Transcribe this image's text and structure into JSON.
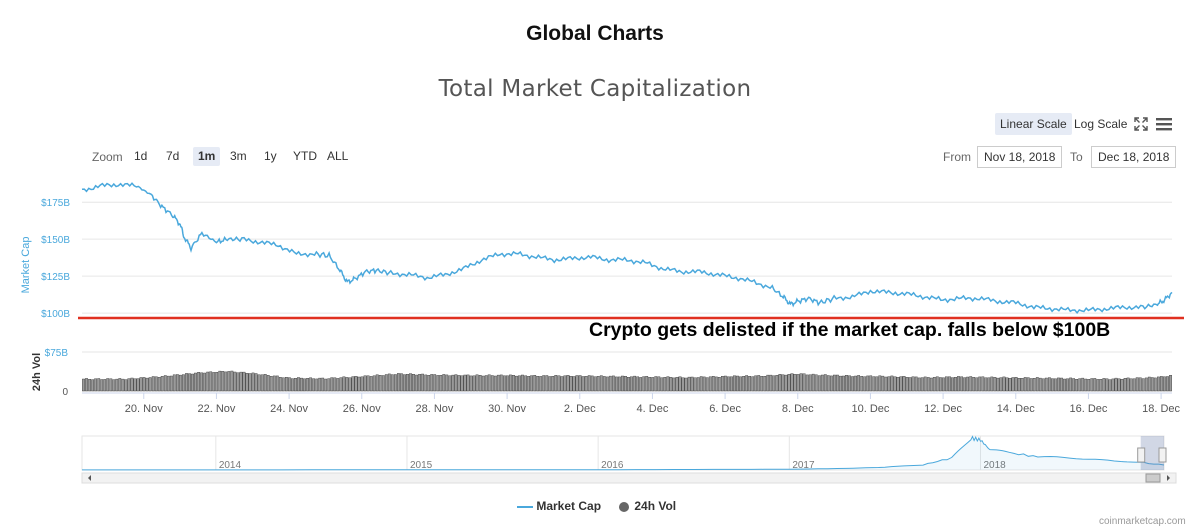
{
  "page_title": "Global Charts",
  "credit": "coinmarketcap.com",
  "toolbar": {
    "zoom_label": "Zoom",
    "zoom_buttons": [
      "1d",
      "7d",
      "1m",
      "3m",
      "1y",
      "YTD",
      "ALL"
    ],
    "active_zoom": "1m",
    "from_label": "From",
    "from_value": "Nov 18, 2018",
    "to_label": "To",
    "to_value": "Dec 18, 2018",
    "linear_scale": "Linear Scale",
    "log_scale": "Log Scale",
    "fullscreen_icon": "fullscreen-icon",
    "menu_icon": "menu-icon"
  },
  "annotation": {
    "text": "Crypto gets delisted if the market cap. falls below $100B",
    "threshold": 100,
    "line_color": "#e03020"
  },
  "legend": {
    "market_cap": "Market Cap",
    "volume": "24h Vol"
  },
  "colors": {
    "market_cap": "#4aa8dc",
    "volume_fill": "#9a9a9a",
    "volume_stroke": "#333333",
    "accent": "#e6ebf5"
  },
  "chart_data": {
    "type": "line",
    "title": "Total Market Capitalization",
    "ylabel": "Market Cap",
    "ylim": [
      92,
      190
    ],
    "yticks": [
      100,
      125,
      150,
      175
    ],
    "ytick_labels": [
      "$100B",
      "$125B",
      "$150B",
      "$175B"
    ],
    "xlim": [
      18.3,
      48.3
    ],
    "xticks": [
      20,
      22,
      24,
      26,
      28,
      30,
      32,
      34,
      36,
      38,
      40,
      42,
      44,
      46,
      48
    ],
    "xtick_labels": [
      "20. Nov",
      "22. Nov",
      "24. Nov",
      "26. Nov",
      "28. Nov",
      "30. Nov",
      "2. Dec",
      "4. Dec",
      "6. Dec",
      "8. Dec",
      "10. Dec",
      "12. Dec",
      "14. Dec",
      "16. Dec",
      "18. Dec"
    ],
    "series": [
      {
        "name": "Market Cap",
        "unit": "$B",
        "x": [
          18.3,
          18.8,
          19.3,
          19.8,
          20.2,
          20.5,
          20.8,
          21.0,
          21.1,
          21.3,
          21.6,
          22.0,
          22.3,
          22.7,
          23.2,
          23.7,
          24.2,
          24.7,
          25.1,
          25.4,
          25.6,
          25.8,
          26.1,
          26.4,
          26.8,
          27.3,
          27.8,
          28.3,
          28.8,
          29.3,
          29.8,
          30.3,
          30.8,
          31.3,
          31.8,
          32.3,
          32.8,
          33.3,
          33.8,
          34.3,
          34.8,
          35.3,
          35.8,
          36.3,
          36.8,
          37.3,
          37.6,
          37.8,
          38.0,
          38.3,
          38.6,
          39.0,
          39.5,
          40.0,
          40.5,
          41.0,
          41.5,
          42.0,
          42.5,
          43.0,
          43.5,
          44.0,
          44.5,
          45.0,
          45.5,
          46.0,
          46.5,
          47.0,
          47.5,
          47.9,
          48.1,
          48.3
        ],
        "values": [
          183,
          186,
          187,
          186,
          180,
          172,
          166,
          160,
          152,
          144,
          154,
          148,
          150,
          150,
          148,
          146,
          140,
          140,
          139,
          129,
          121,
          123,
          128,
          129,
          127,
          126,
          124,
          126,
          130,
          136,
          140,
          140,
          138,
          136,
          137,
          138,
          136,
          136,
          134,
          130,
          128,
          128,
          126,
          124,
          121,
          117,
          111,
          106,
          108,
          110,
          107,
          110,
          111,
          115,
          114,
          113,
          111,
          109,
          110,
          110,
          108,
          107,
          104,
          103,
          102,
          102,
          103,
          104,
          104,
          106,
          109,
          114
        ]
      },
      {
        "name": "24h Vol",
        "unit": "$B",
        "ylim": [
          0,
          75
        ],
        "yticks": [
          0,
          75
        ],
        "ytick_labels": [
          "0",
          "$75B"
        ],
        "x": [
          18.3,
          19.5,
          20.5,
          21.5,
          22.3,
          23.0,
          24.0,
          25.0,
          26.0,
          27.0,
          28.0,
          29.0,
          30.0,
          31.0,
          32.0,
          33.0,
          34.0,
          35.0,
          36.0,
          37.0,
          38.0,
          38.5,
          39.5,
          40.5,
          41.5,
          42.5,
          43.5,
          44.5,
          45.5,
          46.5,
          47.5,
          48.0,
          48.3
        ],
        "values": [
          23,
          23,
          28,
          35,
          38,
          34,
          25,
          24,
          28,
          33,
          31,
          30,
          30,
          29,
          29,
          28,
          27,
          26,
          28,
          29,
          33,
          31,
          29,
          28,
          26,
          27,
          26,
          25,
          24,
          23,
          25,
          27,
          30
        ]
      }
    ]
  },
  "navigator": {
    "years": [
      "2014",
      "2015",
      "2016",
      "2017",
      "2018"
    ],
    "x": [
      2013.3,
      2014,
      2015,
      2016,
      2016.6,
      2017,
      2017.3,
      2017.5,
      2017.7,
      2017.85,
      2017.95,
      2018.0,
      2018.05,
      2018.15,
      2018.3,
      2018.5,
      2018.7,
      2018.8,
      2018.96
    ],
    "values": [
      2,
      3,
      5,
      7,
      14,
      18,
      40,
      70,
      130,
      300,
      800,
      750,
      500,
      430,
      330,
      300,
      220,
      210,
      125
    ],
    "ylim": [
      0,
      850
    ],
    "xlim": [
      2013.3,
      2018.96
    ],
    "selection": [
      2018.88,
      2018.96
    ]
  }
}
